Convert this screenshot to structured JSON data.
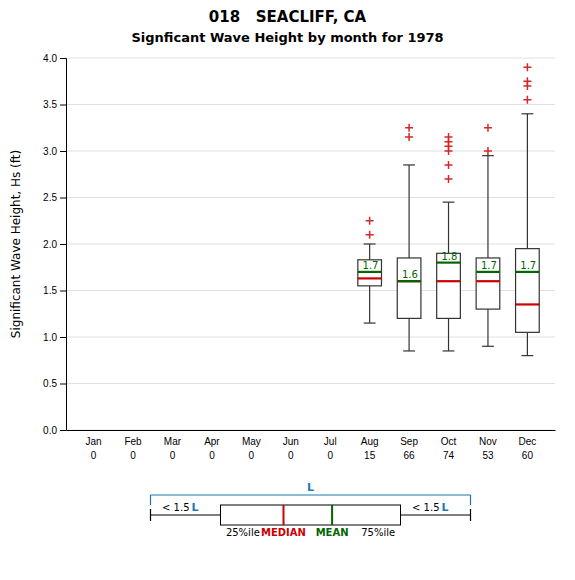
{
  "chart_data": {
    "type": "box",
    "title": "018   SEACLIFF, CA",
    "subtitle": "Signficant Wave Height by month for 1978",
    "ylabel": "Significant Wave Height, Hs (ft)",
    "categories": [
      "Jan",
      "Feb",
      "Mar",
      "Apr",
      "May",
      "Jun",
      "Jul",
      "Aug",
      "Sep",
      "Oct",
      "Nov",
      "Dec"
    ],
    "counts": [
      0,
      0,
      0,
      0,
      0,
      0,
      0,
      15,
      66,
      74,
      53,
      60
    ],
    "boxes": [
      null,
      null,
      null,
      null,
      null,
      null,
      null,
      {
        "q1": 1.55,
        "q3": 1.83,
        "whislo": 1.15,
        "whishi": 2.0,
        "fliers": [
          2.1,
          2.25
        ]
      },
      {
        "q1": 1.2,
        "q3": 1.85,
        "whislo": 0.85,
        "whishi": 2.85,
        "fliers": [
          3.15,
          3.25
        ]
      },
      {
        "q1": 1.2,
        "q3": 1.9,
        "whislo": 0.85,
        "whishi": 2.45,
        "fliers": [
          2.7,
          2.85,
          3.0,
          3.05,
          3.1,
          3.15
        ]
      },
      {
        "q1": 1.3,
        "q3": 1.85,
        "whislo": 0.9,
        "whishi": 2.95,
        "fliers": [
          3.0,
          3.25
        ]
      },
      {
        "q1": 1.05,
        "q3": 1.95,
        "whislo": 0.8,
        "whishi": 3.4,
        "fliers": [
          3.55,
          3.7,
          3.75,
          3.9
        ]
      }
    ],
    "series": [
      {
        "name": "MEDIAN",
        "color": "#cc0000",
        "values": [
          null,
          null,
          null,
          null,
          null,
          null,
          null,
          1.63,
          1.6,
          1.6,
          1.6,
          1.35
        ]
      },
      {
        "name": "MEAN",
        "color": "#006600",
        "values": [
          null,
          null,
          null,
          null,
          null,
          null,
          null,
          1.7,
          1.6,
          1.8,
          1.7,
          1.7
        ],
        "data_labels": true
      }
    ],
    "annotations": [
      "< 1.5 ",
      "L",
      "25%ile",
      "75%ile"
    ],
    "ylim": [
      0.0,
      4.0
    ],
    "yticks": [
      {
        "value": 0,
        "label": "0.0"
      },
      0.5,
      {
        "value": 1,
        "label": "1.0"
      },
      1.5,
      {
        "value": 2,
        "label": "2.0"
      },
      2.5,
      {
        "value": 3,
        "label": "3.0"
      },
      3.5,
      {
        "value": 4,
        "label": "4.0"
      }
    ],
    "grid": true,
    "marker": "plus"
  }
}
